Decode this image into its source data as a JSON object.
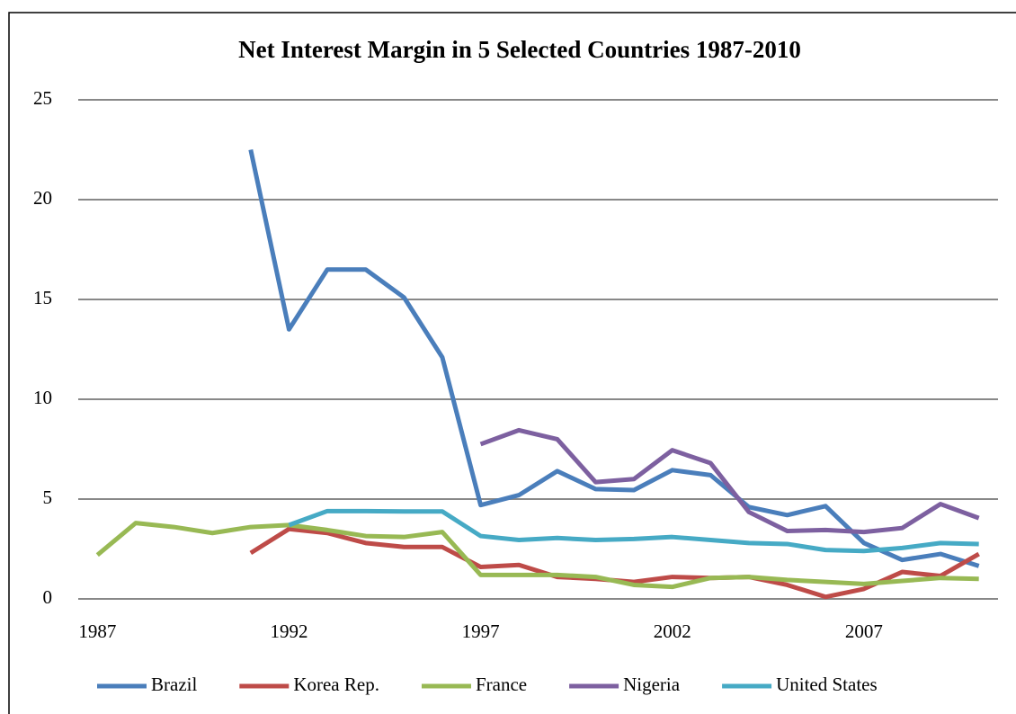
{
  "chart_data": {
    "type": "line",
    "title": "Net Interest Margin in 5 Selected Countries 1987-2010",
    "x": [
      1987,
      1988,
      1989,
      1990,
      1991,
      1992,
      1993,
      1994,
      1995,
      1996,
      1997,
      1998,
      1999,
      2000,
      2001,
      2002,
      2003,
      2004,
      2005,
      2006,
      2007,
      2008,
      2009,
      2010
    ],
    "xlim": [
      1986.5,
      2010.5
    ],
    "xticks": [
      1987,
      1992,
      1997,
      2002,
      2007
    ],
    "ylim": [
      0,
      25
    ],
    "yticks": [
      0,
      5,
      10,
      15,
      20,
      25
    ],
    "grid": true,
    "legend": "bottom",
    "series": [
      {
        "name": "Brazil",
        "color": "#4a7ebb",
        "values": [
          null,
          null,
          null,
          null,
          22.5,
          13.5,
          16.5,
          16.5,
          15.1,
          12.1,
          4.7,
          5.2,
          6.4,
          5.5,
          5.45,
          6.45,
          6.2,
          4.6,
          4.2,
          4.65,
          2.8,
          1.95,
          2.25,
          1.65
        ]
      },
      {
        "name": "Korea Rep.",
        "color": "#be4b48",
        "values": [
          null,
          null,
          null,
          null,
          2.3,
          3.5,
          3.3,
          2.8,
          2.6,
          2.6,
          1.6,
          1.7,
          1.1,
          1.0,
          0.85,
          1.1,
          1.05,
          1.1,
          0.7,
          0.1,
          0.5,
          1.35,
          1.15,
          2.25
        ]
      },
      {
        "name": "France",
        "color": "#98b954",
        "values": [
          2.2,
          3.8,
          3.6,
          3.3,
          3.6,
          3.7,
          3.45,
          3.15,
          3.1,
          3.35,
          1.2,
          1.2,
          1.2,
          1.1,
          0.7,
          0.6,
          1.05,
          1.1,
          0.95,
          0.85,
          0.75,
          0.9,
          1.05,
          1.0
        ]
      },
      {
        "name": "Nigeria",
        "color": "#7d60a0",
        "values": [
          null,
          null,
          null,
          null,
          null,
          null,
          null,
          null,
          null,
          null,
          7.75,
          8.45,
          8.0,
          5.85,
          6.0,
          7.45,
          6.8,
          4.35,
          3.4,
          3.45,
          3.35,
          3.55,
          4.75,
          4.05
        ]
      },
      {
        "name": "United States",
        "color": "#46aac5",
        "values": [
          null,
          null,
          null,
          null,
          null,
          3.7,
          4.4,
          4.4,
          4.38,
          4.38,
          3.15,
          2.95,
          3.05,
          2.95,
          3.0,
          3.1,
          2.95,
          2.8,
          2.75,
          2.45,
          2.4,
          2.55,
          2.8,
          2.75
        ]
      }
    ]
  }
}
